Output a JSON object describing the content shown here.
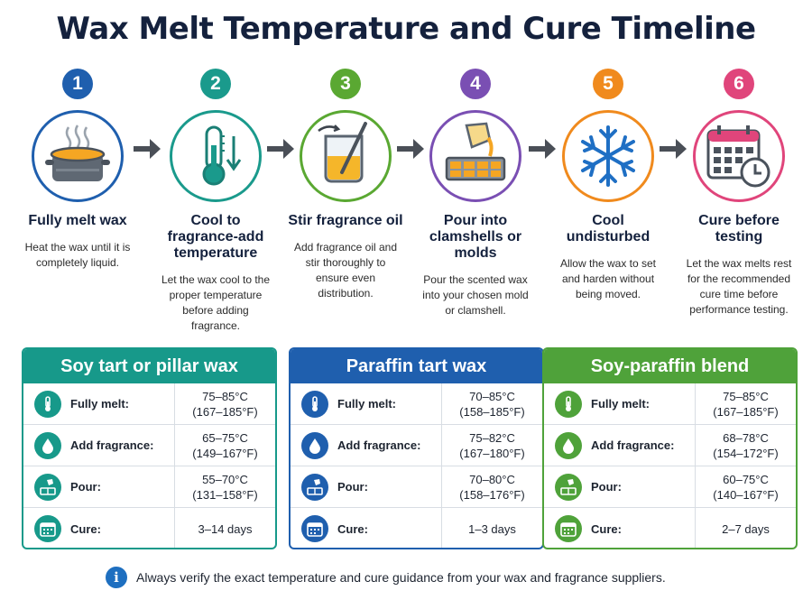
{
  "title": "Wax Melt Temperature and Cure Timeline",
  "steps": [
    {
      "number": "1",
      "title": "Fully melt wax",
      "description": "Heat the wax until it is completely liquid.",
      "color": "#1f5fae",
      "icon": "melting-pot-icon"
    },
    {
      "number": "2",
      "title": "Cool to fragrance-add temperature",
      "description": "Let the wax cool to the proper temperature before adding fragrance.",
      "color": "#1a9a8c",
      "icon": "thermometer-icon"
    },
    {
      "number": "3",
      "title": "Stir fragrance oil",
      "description": "Add fragrance oil and stir thoroughly to ensure even distribution.",
      "color": "#5aa832",
      "icon": "stirring-beaker-icon"
    },
    {
      "number": "4",
      "title": "Pour into clamshells or molds",
      "description": "Pour the scented wax into your chosen mold or clamshell.",
      "color": "#7a4fb3",
      "icon": "pouring-mold-icon"
    },
    {
      "number": "5",
      "title": "Cool undisturbed",
      "description": "Allow the wax to set and harden without being moved.",
      "color": "#f08a1d",
      "icon": "snowflake-icon"
    },
    {
      "number": "6",
      "title": "Cure before testing",
      "description": "Let the wax melts rest for the recommended cure time before performance testing.",
      "color": "#e0457b",
      "icon": "calendar-clock-icon"
    }
  ],
  "cards": [
    {
      "title": "Soy tart or pillar wax",
      "color": "#17998a",
      "rows": [
        {
          "label": "Fully melt:",
          "value": "75–85°C",
          "sub": "(167–185°F)",
          "icon": "thermometer-icon"
        },
        {
          "label": "Add fragrance:",
          "value": "65–75°C",
          "sub": "(149–167°F)",
          "icon": "drop-icon"
        },
        {
          "label": "Pour:",
          "value": "55–70°C",
          "sub": "(131–158°F)",
          "icon": "pour-icon"
        },
        {
          "label": "Cure:",
          "value": "3–14 days",
          "sub": "",
          "icon": "calendar-icon"
        }
      ]
    },
    {
      "title": "Paraffin tart wax",
      "color": "#1f5fae",
      "rows": [
        {
          "label": "Fully melt:",
          "value": "70–85°C",
          "sub": "(158–185°F)",
          "icon": "thermometer-icon"
        },
        {
          "label": "Add fragrance:",
          "value": "75–82°C",
          "sub": "(167–180°F)",
          "icon": "drop-icon"
        },
        {
          "label": "Pour:",
          "value": "70–80°C",
          "sub": "(158–176°F)",
          "icon": "pour-icon"
        },
        {
          "label": "Cure:",
          "value": "1–3 days",
          "sub": "",
          "icon": "calendar-icon"
        }
      ]
    },
    {
      "title": "Soy-paraffin blend",
      "color": "#4fa23a",
      "rows": [
        {
          "label": "Fully melt:",
          "value": "75–85°C",
          "sub": "(167–185°F)",
          "icon": "thermometer-icon"
        },
        {
          "label": "Add fragrance:",
          "value": "68–78°C",
          "sub": "(154–172°F)",
          "icon": "drop-icon"
        },
        {
          "label": "Pour:",
          "value": "60–75°C",
          "sub": "(140–167°F)",
          "icon": "pour-icon"
        },
        {
          "label": "Cure:",
          "value": "2–7 days",
          "sub": "",
          "icon": "calendar-icon"
        }
      ]
    }
  ],
  "note": "Always verify the exact temperature and cure guidance from your wax and fragrance suppliers.",
  "arrow_color": "#4a4f57"
}
